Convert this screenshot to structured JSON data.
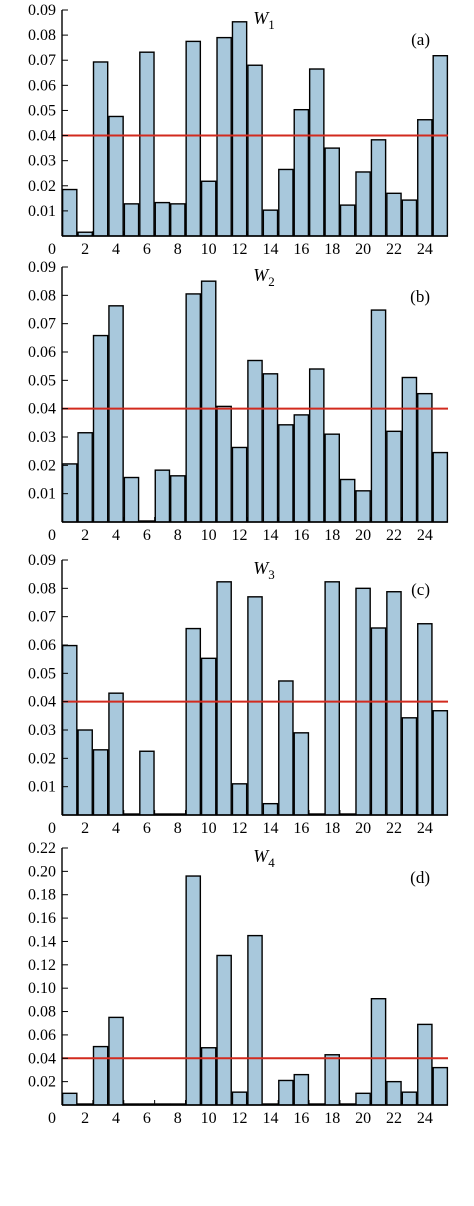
{
  "colors": {
    "bar_fill": "#a8c8dc",
    "bar_stroke": "#000000",
    "threshold_line": "#d22a1e",
    "axis": "#000000"
  },
  "chart_data": [
    {
      "type": "bar",
      "title": "W",
      "title_sub": "1",
      "tag": "(a)",
      "x": [
        1,
        2,
        3,
        4,
        5,
        6,
        7,
        8,
        9,
        10,
        11,
        12,
        13,
        14,
        15,
        16,
        17,
        18,
        19,
        20,
        21,
        22,
        23,
        24,
        25
      ],
      "values": [
        0.0185,
        0.0015,
        0.0693,
        0.0476,
        0.0128,
        0.0732,
        0.0133,
        0.0128,
        0.0775,
        0.0218,
        0.079,
        0.0853,
        0.068,
        0.0103,
        0.0265,
        0.0503,
        0.0665,
        0.035,
        0.0123,
        0.0255,
        0.0383,
        0.017,
        0.0143,
        0.0463,
        0.0718
      ],
      "threshold": 0.04,
      "ylim": [
        0,
        0.09
      ],
      "yticks": [
        0.01,
        0.02,
        0.03,
        0.04,
        0.05,
        0.06,
        0.07,
        0.08,
        0.09
      ],
      "ytick_labels": [
        "0.01",
        "0.02",
        "0.03",
        "0.04",
        "0.05",
        "0.06",
        "0.07",
        "0.08",
        "0.09"
      ],
      "xticks": [
        2,
        4,
        6,
        8,
        10,
        12,
        14,
        16,
        18,
        20,
        22,
        24
      ],
      "xtick_labels": [
        "2",
        "4",
        "6",
        "8",
        "10",
        "12",
        "14",
        "16",
        "18",
        "20",
        "22",
        "24"
      ],
      "zero_label": "0",
      "xlim": [
        0.5,
        25.5
      ]
    },
    {
      "type": "bar",
      "title": "W",
      "title_sub": "2",
      "tag": "(b)",
      "x": [
        1,
        2,
        3,
        4,
        5,
        6,
        7,
        8,
        9,
        10,
        11,
        12,
        13,
        14,
        15,
        16,
        17,
        18,
        19,
        20,
        21,
        22,
        23,
        24,
        25
      ],
      "values": [
        0.0205,
        0.0315,
        0.0658,
        0.0763,
        0.0157,
        0.0003,
        0.0183,
        0.0163,
        0.0805,
        0.085,
        0.0408,
        0.0263,
        0.057,
        0.0523,
        0.0343,
        0.0378,
        0.054,
        0.031,
        0.015,
        0.011,
        0.0748,
        0.032,
        0.051,
        0.0453,
        0.0245
      ],
      "threshold": 0.04,
      "ylim": [
        0,
        0.09
      ],
      "yticks": [
        0.01,
        0.02,
        0.03,
        0.04,
        0.05,
        0.06,
        0.07,
        0.08,
        0.09
      ],
      "ytick_labels": [
        "0.01",
        "0.02",
        "0.03",
        "0.04",
        "0.05",
        "0.06",
        "0.07",
        "0.08",
        "0.09"
      ],
      "xticks": [
        2,
        4,
        6,
        8,
        10,
        12,
        14,
        16,
        18,
        20,
        22,
        24
      ],
      "xtick_labels": [
        "2",
        "4",
        "6",
        "8",
        "10",
        "12",
        "14",
        "16",
        "18",
        "20",
        "22",
        "24"
      ],
      "zero_label": "0",
      "xlim": [
        0.5,
        25.5
      ]
    },
    {
      "type": "bar",
      "title": "W",
      "title_sub": "3",
      "tag": "(c)",
      "x": [
        1,
        2,
        3,
        4,
        5,
        6,
        7,
        8,
        9,
        10,
        11,
        12,
        13,
        14,
        15,
        16,
        17,
        18,
        19,
        20,
        21,
        22,
        23,
        24,
        25
      ],
      "values": [
        0.0598,
        0.03,
        0.023,
        0.043,
        0,
        0.0225,
        0,
        0,
        0.0658,
        0.0553,
        0.0823,
        0.011,
        0.077,
        0.004,
        0.0473,
        0.029,
        0,
        0.0823,
        0,
        0.08,
        0.066,
        0.0788,
        0.0343,
        0.0675,
        0.0368
      ],
      "threshold": 0.04,
      "ylim": [
        0,
        0.09
      ],
      "yticks": [
        0.01,
        0.02,
        0.03,
        0.04,
        0.05,
        0.06,
        0.07,
        0.08,
        0.09
      ],
      "ytick_labels": [
        "0.01",
        "0.02",
        "0.03",
        "0.04",
        "0.05",
        "0.06",
        "0.07",
        "0.08",
        "0.09"
      ],
      "xticks": [
        2,
        4,
        6,
        8,
        10,
        12,
        14,
        16,
        18,
        20,
        22,
        24
      ],
      "xtick_labels": [
        "2",
        "4",
        "6",
        "8",
        "10",
        "12",
        "14",
        "16",
        "18",
        "20",
        "22",
        "24"
      ],
      "zero_label": "0",
      "xlim": [
        0.5,
        25.5
      ]
    },
    {
      "type": "bar",
      "title": "W",
      "title_sub": "4",
      "tag": "(d)",
      "x": [
        1,
        2,
        3,
        4,
        5,
        6,
        7,
        8,
        9,
        10,
        11,
        12,
        13,
        14,
        15,
        16,
        17,
        18,
        19,
        20,
        21,
        22,
        23,
        24,
        25
      ],
      "values": [
        0.01,
        0,
        0.05,
        0.075,
        0,
        0,
        0,
        0,
        0.196,
        0.049,
        0.128,
        0.011,
        0.145,
        0,
        0.021,
        0.026,
        0,
        0.043,
        0,
        0.01,
        0.091,
        0.02,
        0.011,
        0.069,
        0.032
      ],
      "threshold": 0.04,
      "ylim": [
        0,
        0.22
      ],
      "yticks": [
        0.02,
        0.04,
        0.06,
        0.08,
        0.1,
        0.12,
        0.14,
        0.16,
        0.18,
        0.2,
        0.22
      ],
      "ytick_labels": [
        "0.02",
        "0.04",
        "0.06",
        "0.08",
        "0.10",
        "0.12",
        "0.14",
        "0.16",
        "0.18",
        "0.20",
        "0.22"
      ],
      "xticks": [
        2,
        4,
        6,
        8,
        10,
        12,
        14,
        16,
        18,
        20,
        22,
        24
      ],
      "xtick_labels": [
        "2",
        "4",
        "6",
        "8",
        "10",
        "12",
        "14",
        "16",
        "18",
        "20",
        "22",
        "24"
      ],
      "zero_label": "0",
      "xlim": [
        0.5,
        25.5
      ]
    }
  ]
}
